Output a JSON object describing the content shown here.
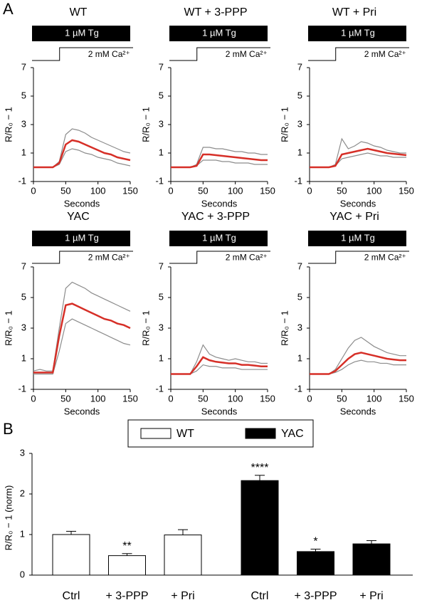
{
  "panel_labels": [
    "A",
    "B"
  ],
  "chart_data": [
    {
      "type": "line",
      "title": "WT",
      "annotations": [
        "1 µM Tg",
        "2 mM Ca²⁺"
      ],
      "xlabel": "Seconds",
      "ylabel": "R/R₀ − 1",
      "x": [
        0,
        10,
        20,
        30,
        40,
        50,
        60,
        70,
        80,
        90,
        100,
        110,
        120,
        130,
        140,
        150
      ],
      "xlim": [
        0,
        150
      ],
      "xticks": [
        0,
        50,
        100,
        150
      ],
      "ylim": [
        -1,
        7
      ],
      "yticks": [
        -1,
        1,
        3,
        5,
        7
      ],
      "series": [
        {
          "color": "#8c8c8c",
          "values": [
            0,
            0,
            0,
            0,
            0.4,
            2.3,
            2.7,
            2.6,
            2.4,
            2.1,
            1.9,
            1.7,
            1.5,
            1.3,
            1.1,
            1.0
          ]
        },
        {
          "color": "#8c8c8c",
          "values": [
            0,
            0,
            0,
            0,
            0.2,
            1.1,
            1.3,
            1.2,
            1.0,
            0.9,
            0.7,
            0.6,
            0.5,
            0.3,
            0.2,
            0.1
          ]
        },
        {
          "color": "#d62f27",
          "values": [
            0,
            0,
            0,
            0,
            0.3,
            1.6,
            1.9,
            1.8,
            1.6,
            1.4,
            1.2,
            1.0,
            0.9,
            0.7,
            0.6,
            0.5
          ]
        }
      ]
    },
    {
      "type": "line",
      "title": "WT + 3-PPP",
      "annotations": [
        "1 µM Tg",
        "2 mM Ca²⁺"
      ],
      "xlabel": "Seconds",
      "ylabel": "R/R₀ − 1",
      "x": [
        0,
        10,
        20,
        30,
        40,
        50,
        60,
        70,
        80,
        90,
        100,
        110,
        120,
        130,
        140,
        150
      ],
      "xlim": [
        0,
        150
      ],
      "xticks": [
        0,
        50,
        100,
        150
      ],
      "ylim": [
        -1,
        7
      ],
      "yticks": [
        -1,
        1,
        3,
        5,
        7
      ],
      "series": [
        {
          "color": "#8c8c8c",
          "values": [
            0,
            0,
            0,
            0,
            0.2,
            1.4,
            1.4,
            1.3,
            1.3,
            1.2,
            1.1,
            1.1,
            1.0,
            1.0,
            0.9,
            0.9
          ]
        },
        {
          "color": "#8c8c8c",
          "values": [
            0,
            0,
            0,
            0,
            0.1,
            0.5,
            0.5,
            0.5,
            0.4,
            0.4,
            0.3,
            0.3,
            0.3,
            0.2,
            0.2,
            0.2
          ]
        },
        {
          "color": "#d62f27",
          "values": [
            0,
            0,
            0,
            0,
            0.1,
            0.9,
            0.9,
            0.85,
            0.8,
            0.75,
            0.7,
            0.65,
            0.6,
            0.55,
            0.5,
            0.5
          ]
        }
      ]
    },
    {
      "type": "line",
      "title": "WT + Pri",
      "annotations": [
        "1 µM Tg",
        "2 mM Ca²⁺"
      ],
      "xlabel": "Seconds",
      "ylabel": "R/R₀ − 1",
      "x": [
        0,
        10,
        20,
        30,
        40,
        50,
        60,
        70,
        80,
        90,
        100,
        110,
        120,
        130,
        140,
        150
      ],
      "xlim": [
        0,
        150
      ],
      "xticks": [
        0,
        50,
        100,
        150
      ],
      "ylim": [
        -1,
        7
      ],
      "yticks": [
        -1,
        1,
        3,
        5,
        7
      ],
      "series": [
        {
          "color": "#8c8c8c",
          "values": [
            0,
            0,
            0,
            0,
            0.2,
            2.0,
            1.3,
            1.5,
            1.8,
            1.7,
            1.5,
            1.4,
            1.2,
            1.1,
            1.0,
            1.0
          ]
        },
        {
          "color": "#8c8c8c",
          "values": [
            0,
            0,
            0,
            0,
            0.1,
            0.6,
            0.7,
            0.8,
            0.9,
            1.0,
            0.9,
            0.8,
            0.8,
            0.7,
            0.7,
            0.7
          ]
        },
        {
          "color": "#d62f27",
          "values": [
            0,
            0,
            0,
            0,
            0.1,
            0.9,
            1.0,
            1.1,
            1.2,
            1.3,
            1.2,
            1.1,
            1.0,
            0.95,
            0.9,
            0.85
          ]
        }
      ]
    },
    {
      "type": "line",
      "title": "YAC",
      "annotations": [
        "1 µM Tg",
        "2 mM Ca²⁺"
      ],
      "xlabel": "Seconds",
      "ylabel": "R/R₀ − 1",
      "x": [
        0,
        10,
        20,
        30,
        40,
        50,
        60,
        70,
        80,
        90,
        100,
        110,
        120,
        130,
        140,
        150
      ],
      "xlim": [
        0,
        150
      ],
      "xticks": [
        0,
        50,
        100,
        150
      ],
      "ylim": [
        -1,
        7
      ],
      "yticks": [
        -1,
        1,
        3,
        5,
        7
      ],
      "series": [
        {
          "color": "#8c8c8c",
          "values": [
            0.2,
            0.3,
            0.2,
            0.2,
            3.0,
            5.6,
            6.0,
            5.8,
            5.6,
            5.3,
            5.1,
            4.9,
            4.7,
            4.5,
            4.3,
            4.1
          ]
        },
        {
          "color": "#8c8c8c",
          "values": [
            0,
            0,
            0,
            0,
            1.5,
            3.3,
            3.6,
            3.4,
            3.2,
            3.0,
            2.8,
            2.6,
            2.4,
            2.2,
            2.0,
            1.9
          ]
        },
        {
          "color": "#d62f27",
          "values": [
            0.1,
            0.1,
            0.1,
            0.1,
            2.5,
            4.5,
            4.6,
            4.4,
            4.2,
            4.0,
            3.8,
            3.6,
            3.5,
            3.3,
            3.2,
            3.0
          ]
        }
      ]
    },
    {
      "type": "line",
      "title": "YAC + 3-PPP",
      "annotations": [
        "1 µM Tg",
        "2 mM Ca²⁺"
      ],
      "xlabel": "Seconds",
      "ylabel": "R/R₀ − 1",
      "x": [
        0,
        10,
        20,
        30,
        40,
        50,
        60,
        70,
        80,
        90,
        100,
        110,
        120,
        130,
        140,
        150
      ],
      "xlim": [
        0,
        150
      ],
      "xticks": [
        0,
        50,
        100,
        150
      ],
      "ylim": [
        -1,
        7
      ],
      "yticks": [
        -1,
        1,
        3,
        5,
        7
      ],
      "series": [
        {
          "color": "#8c8c8c",
          "values": [
            0,
            0,
            0,
            0,
            0.8,
            1.9,
            1.3,
            1.1,
            1.0,
            0.9,
            1.0,
            0.9,
            0.8,
            0.8,
            0.7,
            0.7
          ]
        },
        {
          "color": "#8c8c8c",
          "values": [
            0,
            0,
            0,
            0,
            0.2,
            0.6,
            0.5,
            0.5,
            0.4,
            0.4,
            0.4,
            0.3,
            0.3,
            0.3,
            0.3,
            0.3
          ]
        },
        {
          "color": "#d62f27",
          "values": [
            0,
            0,
            0,
            0,
            0.5,
            1.1,
            0.9,
            0.8,
            0.75,
            0.7,
            0.7,
            0.6,
            0.6,
            0.55,
            0.5,
            0.5
          ]
        }
      ]
    },
    {
      "type": "line",
      "title": "YAC + Pri",
      "annotations": [
        "1 µM Tg",
        "2 mM Ca²⁺"
      ],
      "xlabel": "Seconds",
      "ylabel": "R/R₀ − 1",
      "x": [
        0,
        10,
        20,
        30,
        40,
        50,
        60,
        70,
        80,
        90,
        100,
        110,
        120,
        130,
        140,
        150
      ],
      "xlim": [
        0,
        150
      ],
      "xticks": [
        0,
        50,
        100,
        150
      ],
      "ylim": [
        -1,
        7
      ],
      "yticks": [
        -1,
        1,
        3,
        5,
        7
      ],
      "series": [
        {
          "color": "#8c8c8c",
          "values": [
            0,
            0,
            0,
            0,
            0.3,
            1.0,
            1.7,
            2.2,
            2.4,
            2.1,
            1.8,
            1.6,
            1.4,
            1.3,
            1.2,
            1.2
          ]
        },
        {
          "color": "#8c8c8c",
          "values": [
            0,
            0,
            0,
            0,
            0.1,
            0.3,
            0.6,
            0.8,
            0.9,
            0.8,
            0.8,
            0.7,
            0.7,
            0.6,
            0.6,
            0.6
          ]
        },
        {
          "color": "#d62f27",
          "values": [
            0,
            0,
            0,
            0,
            0.2,
            0.6,
            1.0,
            1.3,
            1.4,
            1.3,
            1.2,
            1.1,
            1.0,
            0.95,
            0.9,
            0.9
          ]
        }
      ]
    },
    {
      "type": "bar",
      "ylabel": "R/R₀ − 1 (norm)",
      "categories": [
        "Ctrl",
        "+ 3-PPP",
        "+ Pri"
      ],
      "ylim": [
        0,
        3
      ],
      "yticks": [
        0,
        1,
        2,
        3
      ],
      "series": [
        {
          "name": "WT",
          "color": "#ffffff",
          "values": [
            1.0,
            0.48,
            0.99
          ],
          "errors": [
            0.08,
            0.05,
            0.13
          ],
          "significance": [
            null,
            "**",
            null
          ]
        },
        {
          "name": "YAC",
          "color": "#000000",
          "values": [
            2.33,
            0.58,
            0.77
          ],
          "errors": [
            0.13,
            0.06,
            0.08
          ],
          "significance": [
            "****",
            "*",
            null
          ]
        }
      ]
    }
  ]
}
